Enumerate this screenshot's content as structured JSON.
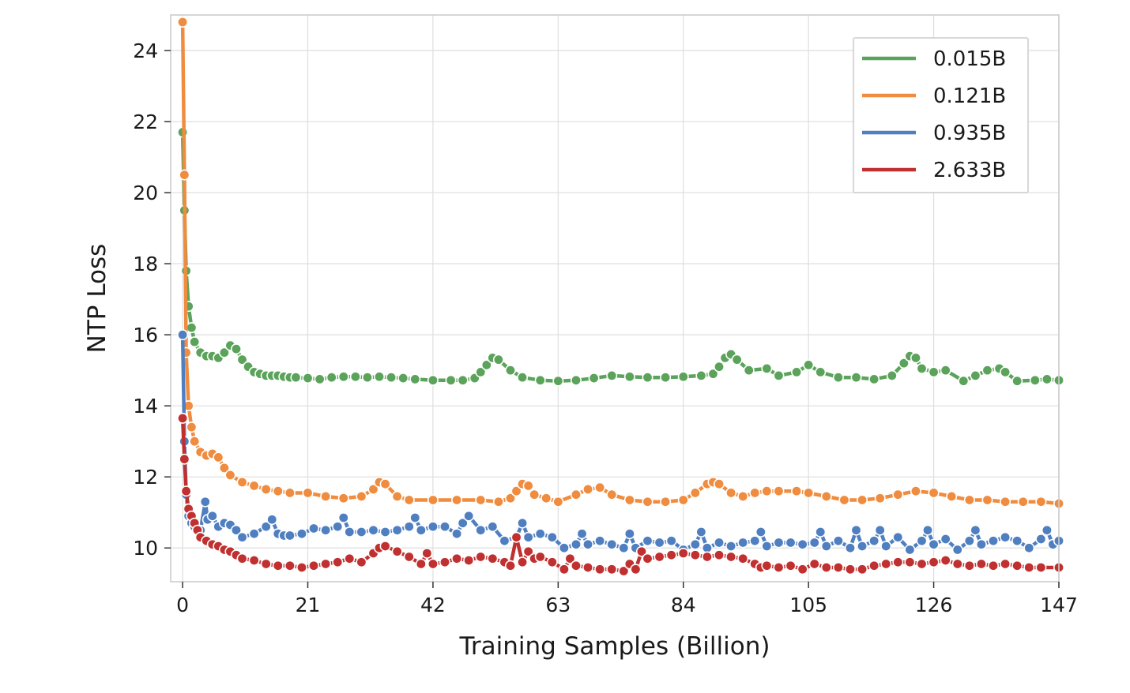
{
  "chart_data": {
    "type": "line",
    "xlabel": "Training Samples (Billion)",
    "ylabel": "NTP Loss",
    "xlim": [
      -2,
      147
    ],
    "ylim": [
      9.05,
      25.0
    ],
    "xticks": [
      0,
      21,
      42,
      63,
      84,
      105,
      126,
      147
    ],
    "yticks": [
      10,
      12,
      14,
      16,
      18,
      20,
      22,
      24
    ],
    "grid": true,
    "legend_position": "top-right",
    "series": [
      {
        "name": "0.015B",
        "color": "#5ba35b",
        "x": [
          0,
          0.3,
          0.6,
          1,
          1.5,
          2,
          3,
          4,
          5,
          6,
          7,
          8,
          9,
          10,
          11,
          12,
          13,
          14,
          15,
          16,
          17,
          18,
          19,
          21,
          23,
          25,
          27,
          29,
          31,
          33,
          35,
          37,
          39,
          42,
          45,
          47,
          49,
          50,
          51,
          52,
          53,
          55,
          57,
          60,
          63,
          66,
          69,
          72,
          75,
          78,
          81,
          84,
          87,
          89,
          90,
          91,
          92,
          93,
          95,
          98,
          100,
          103,
          105,
          107,
          110,
          113,
          116,
          119,
          121,
          122,
          123,
          124,
          126,
          128,
          131,
          133,
          135,
          137,
          138,
          140,
          143,
          145,
          147
        ],
        "values": [
          21.7,
          19.5,
          17.8,
          16.8,
          16.2,
          15.8,
          15.5,
          15.4,
          15.4,
          15.35,
          15.5,
          15.7,
          15.6,
          15.3,
          15.1,
          14.95,
          14.9,
          14.85,
          14.85,
          14.85,
          14.82,
          14.8,
          14.8,
          14.78,
          14.75,
          14.8,
          14.82,
          14.82,
          14.8,
          14.82,
          14.8,
          14.78,
          14.75,
          14.72,
          14.72,
          14.72,
          14.78,
          14.95,
          15.15,
          15.35,
          15.3,
          15.0,
          14.8,
          14.72,
          14.7,
          14.72,
          14.78,
          14.85,
          14.82,
          14.8,
          14.8,
          14.82,
          14.85,
          14.9,
          15.1,
          15.35,
          15.45,
          15.3,
          15.0,
          15.05,
          14.85,
          14.95,
          15.15,
          14.95,
          14.8,
          14.8,
          14.75,
          14.85,
          15.2,
          15.4,
          15.35,
          15.05,
          14.95,
          15.0,
          14.7,
          14.85,
          15.0,
          15.05,
          14.95,
          14.7,
          14.72,
          14.75,
          14.72
        ]
      },
      {
        "name": "0.121B",
        "color": "#ef8c3f",
        "x": [
          0,
          0.3,
          0.6,
          1,
          1.5,
          2,
          3,
          4,
          5,
          6,
          7,
          8,
          10,
          12,
          14,
          16,
          18,
          21,
          24,
          27,
          30,
          32,
          33,
          34,
          36,
          38,
          42,
          46,
          50,
          53,
          55,
          56,
          57,
          58,
          59,
          61,
          63,
          66,
          68,
          70,
          72,
          75,
          78,
          81,
          84,
          86,
          88,
          89,
          90,
          92,
          94,
          96,
          98,
          100,
          103,
          105,
          108,
          111,
          114,
          117,
          120,
          123,
          126,
          129,
          132,
          135,
          138,
          141,
          144,
          147
        ],
        "values": [
          24.8,
          20.5,
          15.5,
          14.0,
          13.4,
          13.0,
          12.7,
          12.6,
          12.65,
          12.55,
          12.25,
          12.05,
          11.85,
          11.75,
          11.65,
          11.6,
          11.55,
          11.55,
          11.45,
          11.4,
          11.45,
          11.65,
          11.85,
          11.8,
          11.45,
          11.35,
          11.35,
          11.35,
          11.35,
          11.3,
          11.4,
          11.6,
          11.8,
          11.75,
          11.5,
          11.4,
          11.3,
          11.5,
          11.65,
          11.7,
          11.5,
          11.35,
          11.3,
          11.3,
          11.35,
          11.55,
          11.8,
          11.85,
          11.8,
          11.55,
          11.45,
          11.55,
          11.6,
          11.6,
          11.6,
          11.55,
          11.45,
          11.35,
          11.35,
          11.4,
          11.5,
          11.6,
          11.55,
          11.45,
          11.35,
          11.35,
          11.3,
          11.3,
          11.3,
          11.25
        ]
      },
      {
        "name": "0.935B",
        "color": "#4f7fc0",
        "x": [
          0,
          0.3,
          0.6,
          1,
          1.5,
          2,
          3,
          3.8,
          4.2,
          5,
          6,
          7,
          8,
          9,
          10,
          12,
          14,
          15,
          16,
          17,
          18,
          20,
          22,
          24,
          26,
          27,
          28,
          30,
          32,
          34,
          36,
          38,
          39,
          40,
          42,
          44,
          46,
          47,
          48,
          50,
          52,
          54,
          56,
          57,
          58,
          60,
          62,
          64,
          66,
          67,
          68,
          70,
          72,
          74,
          75,
          76,
          78,
          80,
          82,
          84,
          86,
          87,
          88,
          90,
          92,
          94,
          96,
          97,
          98,
          100,
          102,
          104,
          106,
          107,
          108,
          110,
          112,
          113,
          114,
          116,
          117,
          118,
          120,
          122,
          124,
          125,
          126,
          128,
          130,
          132,
          133,
          134,
          136,
          138,
          140,
          142,
          144,
          145,
          146,
          147
        ],
        "values": [
          16.0,
          13.0,
          11.5,
          10.9,
          10.7,
          10.6,
          10.5,
          11.3,
          10.8,
          10.9,
          10.6,
          10.7,
          10.65,
          10.5,
          10.3,
          10.4,
          10.6,
          10.8,
          10.4,
          10.35,
          10.35,
          10.4,
          10.55,
          10.5,
          10.6,
          10.85,
          10.45,
          10.45,
          10.5,
          10.45,
          10.5,
          10.6,
          10.85,
          10.5,
          10.6,
          10.6,
          10.4,
          10.7,
          10.9,
          10.5,
          10.6,
          10.2,
          10.3,
          10.7,
          10.3,
          10.4,
          10.3,
          10.0,
          10.1,
          10.4,
          10.1,
          10.2,
          10.1,
          10.0,
          10.4,
          10.0,
          10.2,
          10.15,
          10.2,
          9.95,
          10.1,
          10.45,
          10.0,
          10.15,
          10.05,
          10.15,
          10.2,
          10.45,
          10.05,
          10.15,
          10.15,
          10.1,
          10.15,
          10.45,
          10.05,
          10.2,
          10.0,
          10.5,
          10.05,
          10.2,
          10.5,
          10.05,
          10.3,
          9.95,
          10.2,
          10.5,
          10.1,
          10.25,
          9.95,
          10.2,
          10.5,
          10.1,
          10.2,
          10.3,
          10.2,
          10.0,
          10.25,
          10.5,
          10.1,
          10.2
        ]
      },
      {
        "name": "2.633B",
        "color": "#c03030",
        "x": [
          0,
          0.3,
          0.6,
          1,
          1.5,
          2,
          2.5,
          3,
          4,
          5,
          6,
          7,
          8,
          9,
          10,
          12,
          14,
          16,
          18,
          20,
          22,
          24,
          26,
          28,
          30,
          32,
          33,
          34,
          36,
          38,
          40,
          41,
          42,
          44,
          46,
          48,
          50,
          52,
          54,
          55,
          56,
          57,
          58,
          59,
          60,
          62,
          64,
          65,
          66,
          68,
          70,
          72,
          74,
          75,
          76,
          77,
          78,
          80,
          82,
          84,
          86,
          88,
          90,
          92,
          94,
          96,
          97,
          98,
          100,
          102,
          104,
          106,
          108,
          110,
          112,
          114,
          116,
          118,
          120,
          122,
          124,
          126,
          128,
          130,
          132,
          134,
          136,
          138,
          140,
          142,
          144,
          147
        ],
        "values": [
          13.65,
          12.5,
          11.6,
          11.1,
          10.9,
          10.7,
          10.5,
          10.3,
          10.2,
          10.1,
          10.05,
          9.95,
          9.9,
          9.8,
          9.7,
          9.65,
          9.55,
          9.5,
          9.5,
          9.45,
          9.5,
          9.55,
          9.6,
          9.7,
          9.6,
          9.85,
          10.0,
          10.05,
          9.9,
          9.75,
          9.55,
          9.85,
          9.55,
          9.6,
          9.7,
          9.65,
          9.75,
          9.7,
          9.6,
          9.5,
          10.3,
          9.6,
          9.9,
          9.7,
          9.75,
          9.6,
          9.4,
          9.7,
          9.5,
          9.45,
          9.4,
          9.4,
          9.35,
          9.55,
          9.4,
          9.9,
          9.7,
          9.75,
          9.8,
          9.85,
          9.8,
          9.75,
          9.8,
          9.75,
          9.7,
          9.55,
          9.45,
          9.5,
          9.45,
          9.5,
          9.4,
          9.55,
          9.45,
          9.45,
          9.4,
          9.4,
          9.5,
          9.55,
          9.6,
          9.6,
          9.55,
          9.6,
          9.65,
          9.55,
          9.5,
          9.55,
          9.5,
          9.55,
          9.5,
          9.45,
          9.45,
          9.45
        ]
      }
    ]
  }
}
